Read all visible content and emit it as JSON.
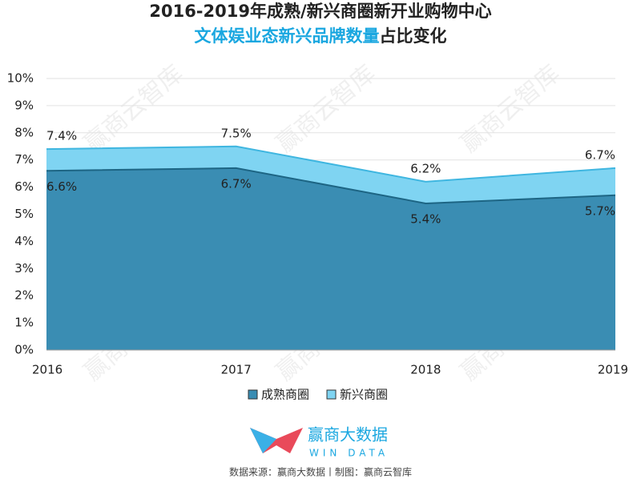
{
  "chart_data": {
    "type": "area",
    "title": "2016-2019年成熟/新兴商圈新开业购物中心",
    "subtitle_highlight": "文体娱业态新兴品牌数量",
    "subtitle_rest": "占比变化",
    "categories": [
      "2016",
      "2017",
      "2018",
      "2019"
    ],
    "series": [
      {
        "name": "新兴商圈",
        "color": "#7fd4f2",
        "line_color": "#3fb6e0",
        "values": [
          7.4,
          7.5,
          6.2,
          6.7
        ],
        "value_labels": [
          "7.4%",
          "7.5%",
          "6.2%",
          "6.7%"
        ]
      },
      {
        "name": "成熟商圈",
        "color": "#3a8db3",
        "line_color": "#1d6584",
        "values": [
          6.6,
          6.7,
          5.4,
          5.7
        ],
        "value_labels": [
          "6.6%",
          "6.7%",
          "5.4%",
          "5.7%"
        ]
      }
    ],
    "ylim": [
      0,
      10
    ],
    "yticks": [
      {
        "value": 0,
        "label": "0%"
      },
      {
        "value": 1,
        "label": "1%"
      },
      {
        "value": 2,
        "label": "2%"
      },
      {
        "value": 3,
        "label": "3%"
      },
      {
        "value": 4,
        "label": "4%"
      },
      {
        "value": 5,
        "label": "5%"
      },
      {
        "value": 6,
        "label": "6%"
      },
      {
        "value": 7,
        "label": "7%"
      },
      {
        "value": 8,
        "label": "8%"
      },
      {
        "value": 9,
        "label": "9%"
      },
      {
        "value": 10,
        "label": "10%"
      }
    ],
    "grid": true,
    "legend_order": [
      1,
      0
    ],
    "watermark": "赢商云智库",
    "logo_text": "赢商大数据",
    "logo_subtext": "WIN DATA",
    "source": "数据来源：赢商大数据丨制图：赢商云智库"
  }
}
